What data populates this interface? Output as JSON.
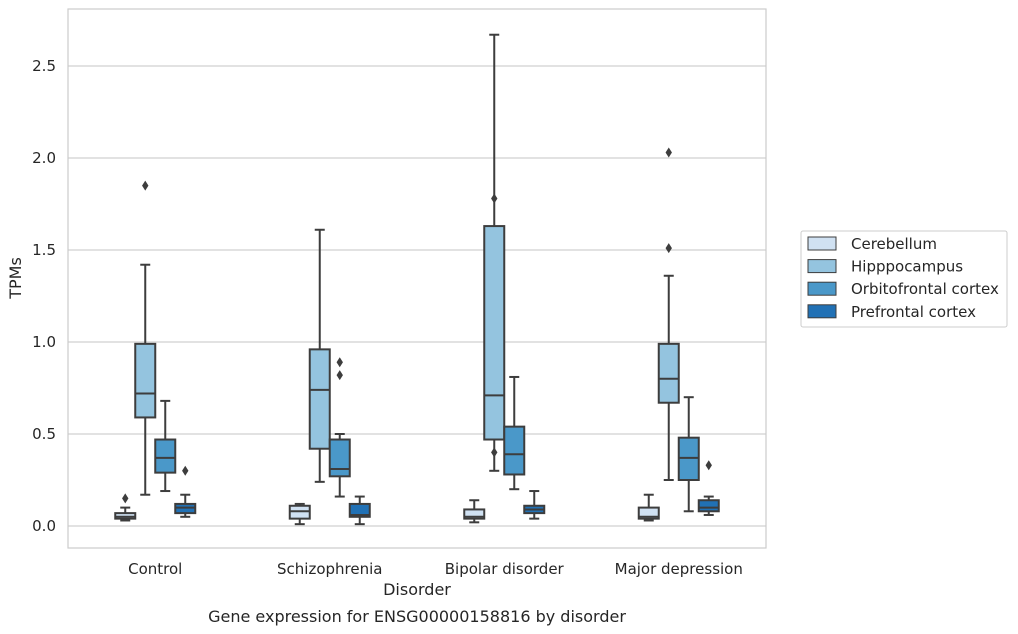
{
  "chart_data": {
    "type": "box",
    "title": "",
    "caption": "Gene expression for ENSG00000158816 by disorder",
    "xlabel": "Disorder",
    "ylabel": "TPMs",
    "ylim": [
      -0.12,
      2.82
    ],
    "yticks": [
      0.0,
      0.5,
      1.0,
      1.5,
      2.0,
      2.5
    ],
    "ytick_labels": [
      "0.0",
      "0.5",
      "1.0",
      "1.5",
      "2.0",
      "2.5"
    ],
    "grid": "horizontal",
    "legend_position": "right",
    "categories": [
      "Control",
      "Schizophrenia",
      "Bipolar disorder",
      "Major depression"
    ],
    "series": [
      {
        "name": "Cerebellum",
        "color": "#d0e1f2",
        "boxes": [
          {
            "whislo": 0.03,
            "q1": 0.04,
            "med": 0.05,
            "q3": 0.07,
            "whishi": 0.1,
            "fliers": [
              0.15
            ]
          },
          {
            "whislo": 0.01,
            "q1": 0.04,
            "med": 0.08,
            "q3": 0.11,
            "whishi": 0.12,
            "fliers": []
          },
          {
            "whislo": 0.02,
            "q1": 0.04,
            "med": 0.05,
            "q3": 0.09,
            "whishi": 0.14,
            "fliers": []
          },
          {
            "whislo": 0.03,
            "q1": 0.04,
            "med": 0.05,
            "q3": 0.1,
            "whishi": 0.17,
            "fliers": []
          }
        ]
      },
      {
        "name": "Hipppocampus",
        "color": "#94c4df",
        "boxes": [
          {
            "whislo": 0.17,
            "q1": 0.59,
            "med": 0.72,
            "q3": 0.99,
            "whishi": 1.42,
            "fliers": [
              1.85
            ]
          },
          {
            "whislo": 0.24,
            "q1": 0.42,
            "med": 0.74,
            "q3": 0.96,
            "whishi": 1.61,
            "fliers": []
          },
          {
            "whislo": 0.3,
            "q1": 0.47,
            "med": 0.71,
            "q3": 1.63,
            "whishi": 2.67,
            "fliers": [
              1.78,
              0.4
            ]
          },
          {
            "whislo": 0.25,
            "q1": 0.67,
            "med": 0.8,
            "q3": 0.99,
            "whishi": 1.36,
            "fliers": [
              2.03,
              1.51
            ]
          }
        ]
      },
      {
        "name": "Orbitofrontal cortex",
        "color": "#4a98c9",
        "boxes": [
          {
            "whislo": 0.19,
            "q1": 0.29,
            "med": 0.37,
            "q3": 0.47,
            "whishi": 0.68,
            "fliers": []
          },
          {
            "whislo": 0.16,
            "q1": 0.27,
            "med": 0.31,
            "q3": 0.47,
            "whishi": 0.5,
            "fliers": [
              0.82,
              0.89
            ]
          },
          {
            "whislo": 0.2,
            "q1": 0.28,
            "med": 0.39,
            "q3": 0.54,
            "whishi": 0.81,
            "fliers": []
          },
          {
            "whislo": 0.08,
            "q1": 0.25,
            "med": 0.37,
            "q3": 0.48,
            "whishi": 0.7,
            "fliers": []
          }
        ]
      },
      {
        "name": "Prefrontal cortex",
        "color": "#2171b5",
        "boxes": [
          {
            "whislo": 0.05,
            "q1": 0.07,
            "med": 0.1,
            "q3": 0.12,
            "whishi": 0.17,
            "fliers": [
              0.3
            ]
          },
          {
            "whislo": 0.01,
            "q1": 0.05,
            "med": 0.06,
            "q3": 0.12,
            "whishi": 0.16,
            "fliers": []
          },
          {
            "whislo": 0.04,
            "q1": 0.07,
            "med": 0.09,
            "q3": 0.11,
            "whishi": 0.19,
            "fliers": []
          },
          {
            "whislo": 0.06,
            "q1": 0.08,
            "med": 0.1,
            "q3": 0.14,
            "whishi": 0.16,
            "fliers": [
              0.33
            ]
          }
        ]
      }
    ]
  }
}
